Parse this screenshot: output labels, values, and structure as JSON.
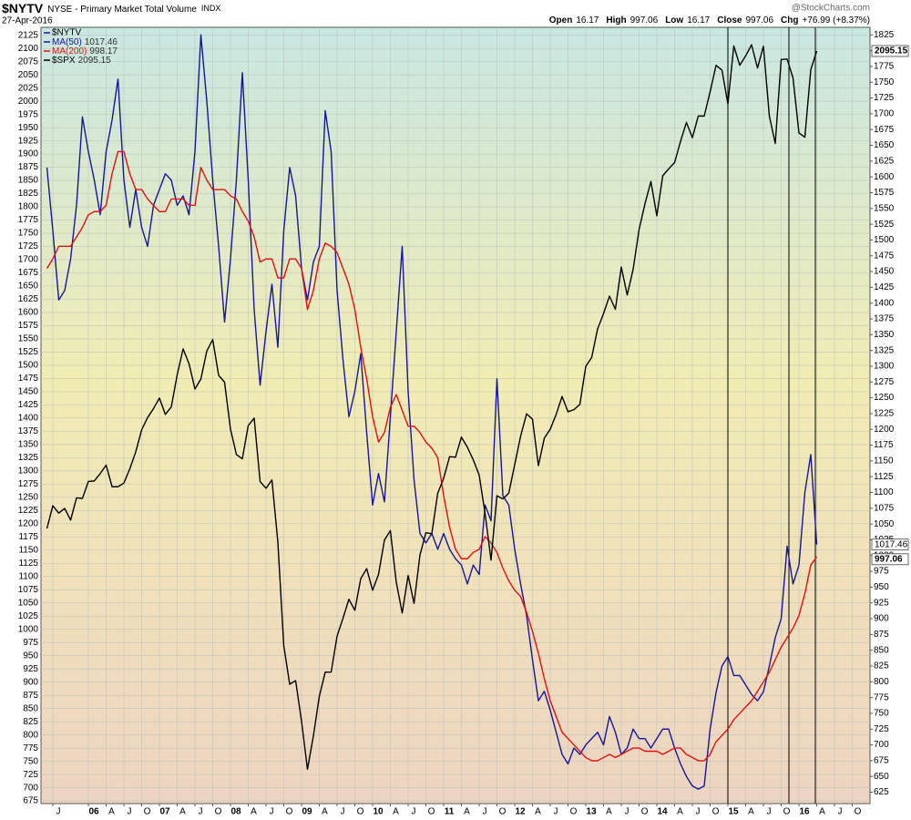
{
  "chart_data": {
    "type": "line",
    "title": "$NYTV",
    "subtitle": "NYSE - Primary Market Total Volume",
    "exchange": "INDX",
    "date": "27-Apr-2016",
    "source": "@StockCharts.com",
    "quote": [
      {
        "label": "Open",
        "value": 16.17
      },
      {
        "label": "High",
        "value": 997.06
      },
      {
        "label": "Low",
        "value": 16.17
      },
      {
        "label": "Close",
        "value": 997.06
      },
      {
        "label": "Chg",
        "value": "+76.99 (+8.37%)"
      }
    ],
    "x": [
      "2005-06",
      "2005-07",
      "2005-08",
      "2005-09",
      "2005-10",
      "2005-11",
      "2005-12",
      "2006-01",
      "2006-02",
      "2006-03",
      "2006-04",
      "2006-05",
      "2006-06",
      "2006-07",
      "2006-08",
      "2006-09",
      "2006-10",
      "2006-11",
      "2006-12",
      "2007-01",
      "2007-02",
      "2007-03",
      "2007-04",
      "2007-05",
      "2007-06",
      "2007-07",
      "2007-08",
      "2007-09",
      "2007-10",
      "2007-11",
      "2007-12",
      "2008-01",
      "2008-02",
      "2008-03",
      "2008-04",
      "2008-05",
      "2008-06",
      "2008-07",
      "2008-08",
      "2008-09",
      "2008-10",
      "2008-11",
      "2008-12",
      "2009-01",
      "2009-02",
      "2009-03",
      "2009-04",
      "2009-05",
      "2009-06",
      "2009-07",
      "2009-08",
      "2009-09",
      "2009-10",
      "2009-11",
      "2009-12",
      "2010-01",
      "2010-02",
      "2010-03",
      "2010-04",
      "2010-05",
      "2010-06",
      "2010-07",
      "2010-08",
      "2010-09",
      "2010-10",
      "2010-11",
      "2010-12",
      "2011-01",
      "2011-02",
      "2011-03",
      "2011-04",
      "2011-05",
      "2011-06",
      "2011-07",
      "2011-08",
      "2011-09",
      "2011-10",
      "2011-11",
      "2011-12",
      "2012-01",
      "2012-02",
      "2012-03",
      "2012-04",
      "2012-05",
      "2012-06",
      "2012-07",
      "2012-08",
      "2012-09",
      "2012-10",
      "2012-11",
      "2012-12",
      "2013-01",
      "2013-02",
      "2013-03",
      "2013-04",
      "2013-05",
      "2013-06",
      "2013-07",
      "2013-08",
      "2013-09",
      "2013-10",
      "2013-11",
      "2013-12",
      "2014-01",
      "2014-02",
      "2014-03",
      "2014-04",
      "2014-05",
      "2014-06",
      "2014-07",
      "2014-08",
      "2014-09",
      "2014-10",
      "2014-11",
      "2014-12",
      "2015-01",
      "2015-02",
      "2015-03",
      "2015-04",
      "2015-05",
      "2015-06",
      "2015-07",
      "2015-08",
      "2015-09",
      "2015-10",
      "2015-11",
      "2015-12",
      "2016-01",
      "2016-02",
      "2016-03",
      "2016-04"
    ],
    "series": [
      {
        "name": "MA(50)",
        "color": "#16169a",
        "axis": "y2",
        "values": [
          1615,
          1515,
          1405,
          1420,
          1470,
          1555,
          1695,
          1640,
          1595,
          1540,
          1640,
          1690,
          1755,
          1595,
          1520,
          1580,
          1520,
          1490,
          1555,
          1580,
          1605,
          1595,
          1555,
          1570,
          1540,
          1640,
          1825,
          1720,
          1595,
          1490,
          1370,
          1470,
          1595,
          1765,
          1595,
          1390,
          1270,
          1355,
          1430,
          1330,
          1515,
          1615,
          1570,
          1455,
          1405,
          1465,
          1490,
          1705,
          1640,
          1420,
          1310,
          1220,
          1260,
          1320,
          1195,
          1080,
          1130,
          1085,
          1220,
          1355,
          1490,
          1260,
          1120,
          1035,
          1020,
          1035,
          1010,
          1035,
          1010,
          995,
          985,
          955,
          985,
          970,
          1080,
          1055,
          1280,
          1095,
          1080,
          1010,
          955,
          905,
          835,
          770,
          785,
          755,
          720,
          685,
          670,
          695,
          685,
          700,
          710,
          720,
          700,
          745,
          720,
          685,
          695,
          725,
          710,
          710,
          695,
          710,
          725,
          725,
          695,
          670,
          650,
          635,
          630,
          635,
          725,
          783,
          825,
          840,
          810,
          810,
          795,
          780,
          770,
          784,
          825,
          870,
          900,
          1015,
          955,
          985,
          1100,
          1160,
          1017.46
        ]
      },
      {
        "name": "MA(200)",
        "color": "#e01010",
        "axis": "y2",
        "values": [
          1455,
          1470,
          1490,
          1490,
          1490,
          1505,
          1520,
          1540,
          1545,
          1545,
          1555,
          1605,
          1640,
          1640,
          1605,
          1580,
          1580,
          1565,
          1555,
          1545,
          1545,
          1565,
          1565,
          1565,
          1555,
          1555,
          1615,
          1595,
          1580,
          1580,
          1580,
          1570,
          1565,
          1545,
          1530,
          1505,
          1465,
          1470,
          1470,
          1440,
          1440,
          1470,
          1470,
          1455,
          1390,
          1420,
          1470,
          1495,
          1490,
          1480,
          1455,
          1430,
          1390,
          1330,
          1280,
          1220,
          1180,
          1195,
          1235,
          1255,
          1230,
          1205,
          1205,
          1195,
          1180,
          1170,
          1155,
          1095,
          1045,
          1010,
          995,
          995,
          1005,
          1010,
          1030,
          1020,
          1005,
          980,
          960,
          945,
          935,
          910,
          880,
          845,
          805,
          770,
          745,
          720,
          710,
          700,
          690,
          680,
          675,
          675,
          680,
          685,
          680,
          685,
          690,
          695,
          695,
          690,
          690,
          690,
          685,
          690,
          695,
          695,
          685,
          680,
          675,
          675,
          685,
          705,
          715,
          725,
          740,
          750,
          760,
          770,
          785,
          800,
          815,
          835,
          855,
          870,
          885,
          905,
          940,
          985,
          998.17
        ]
      },
      {
        "name": "$SPX",
        "color": "#000000",
        "values": [
          1191,
          1234,
          1220,
          1229,
          1207,
          1249,
          1248,
          1280,
          1281,
          1295,
          1311,
          1270,
          1270,
          1277,
          1304,
          1336,
          1378,
          1401,
          1418,
          1438,
          1407,
          1421,
          1482,
          1531,
          1503,
          1455,
          1474,
          1527,
          1549,
          1481,
          1468,
          1379,
          1331,
          1323,
          1386,
          1400,
          1280,
          1267,
          1283,
          1165,
          969,
          896,
          903,
          826,
          735,
          798,
          873,
          919,
          919,
          987,
          1021,
          1057,
          1036,
          1096,
          1115,
          1074,
          1104,
          1169,
          1187,
          1089,
          1031,
          1102,
          1049,
          1141,
          1183,
          1181,
          1258,
          1286,
          1327,
          1326,
          1364,
          1345,
          1321,
          1292,
          1219,
          1131,
          1253,
          1247,
          1258,
          1312,
          1366,
          1408,
          1398,
          1310,
          1362,
          1379,
          1407,
          1441,
          1412,
          1416,
          1426,
          1498,
          1515,
          1569,
          1598,
          1631,
          1606,
          1686,
          1633,
          1682,
          1757,
          1806,
          1848,
          1783,
          1859,
          1872,
          1884,
          1924,
          1960,
          1931,
          1972,
          1972,
          2018,
          2068,
          2059,
          1995,
          2105,
          2068,
          2086,
          2107,
          2063,
          2104,
          1972,
          1920,
          2079,
          2080,
          2044,
          1940,
          1932,
          2060,
          2095.15
        ]
      }
    ],
    "xlim": [
      "2005-05",
      "2017-01"
    ],
    "xticks": [
      {
        "value": "2005-07",
        "label": "J"
      },
      {
        "value": "2006-01",
        "label": "06"
      },
      {
        "value": "2006-04",
        "label": "A"
      },
      {
        "value": "2006-07",
        "label": "J"
      },
      {
        "value": "2006-10",
        "label": "O"
      },
      {
        "value": "2007-01",
        "label": "07"
      },
      {
        "value": "2007-04",
        "label": "A"
      },
      {
        "value": "2007-07",
        "label": "J"
      },
      {
        "value": "2007-10",
        "label": "O"
      },
      {
        "value": "2008-01",
        "label": "08"
      },
      {
        "value": "2008-04",
        "label": "A"
      },
      {
        "value": "2008-07",
        "label": "J"
      },
      {
        "value": "2008-10",
        "label": "O"
      },
      {
        "value": "2009-01",
        "label": "09"
      },
      {
        "value": "2009-04",
        "label": "A"
      },
      {
        "value": "2009-07",
        "label": "J"
      },
      {
        "value": "2009-10",
        "label": "O"
      },
      {
        "value": "2010-01",
        "label": "10"
      },
      {
        "value": "2010-04",
        "label": "A"
      },
      {
        "value": "2010-07",
        "label": "J"
      },
      {
        "value": "2010-10",
        "label": "O"
      },
      {
        "value": "2011-01",
        "label": "11"
      },
      {
        "value": "2011-04",
        "label": "A"
      },
      {
        "value": "2011-07",
        "label": "J"
      },
      {
        "value": "2011-10",
        "label": "O"
      },
      {
        "value": "2012-01",
        "label": "12"
      },
      {
        "value": "2012-04",
        "label": "A"
      },
      {
        "value": "2012-07",
        "label": "J"
      },
      {
        "value": "2012-10",
        "label": "O"
      },
      {
        "value": "2013-01",
        "label": "13"
      },
      {
        "value": "2013-04",
        "label": "A"
      },
      {
        "value": "2013-07",
        "label": "J"
      },
      {
        "value": "2013-10",
        "label": "O"
      },
      {
        "value": "2014-01",
        "label": "14"
      },
      {
        "value": "2014-04",
        "label": "A"
      },
      {
        "value": "2014-07",
        "label": "J"
      },
      {
        "value": "2014-10",
        "label": "O"
      },
      {
        "value": "2015-01",
        "label": "15"
      },
      {
        "value": "2015-04",
        "label": "A"
      },
      {
        "value": "2015-07",
        "label": "J"
      },
      {
        "value": "2015-10",
        "label": "O"
      },
      {
        "value": "2016-01",
        "label": "16"
      },
      {
        "value": "2016-04",
        "label": "A"
      },
      {
        "value": "2016-07",
        "label": "J"
      },
      {
        "value": "2016-10",
        "label": "O"
      }
    ],
    "ylim": [
      670,
      2140
    ],
    "yticks": [
      675,
      700,
      725,
      750,
      775,
      800,
      825,
      850,
      875,
      900,
      925,
      950,
      975,
      1000,
      1025,
      1050,
      1075,
      1100,
      1125,
      1150,
      1175,
      1200,
      1225,
      1250,
      1275,
      1300,
      1325,
      1350,
      1375,
      1400,
      1425,
      1450,
      1475,
      1500,
      1525,
      1550,
      1575,
      1600,
      1625,
      1650,
      1675,
      1700,
      1725,
      1750,
      1775,
      1800,
      1825,
      1850,
      1875,
      1900,
      1925,
      1950,
      1975,
      2000,
      2025,
      2050,
      2075,
      2100,
      2125
    ],
    "y2lim": [
      607,
      1837
    ],
    "y2ticks": [
      625,
      650,
      675,
      700,
      725,
      750,
      775,
      800,
      825,
      850,
      875,
      900,
      925,
      950,
      975,
      1000,
      1025,
      1050,
      1075,
      1100,
      1125,
      1150,
      1175,
      1200,
      1225,
      1250,
      1275,
      1300,
      1325,
      1350,
      1375,
      1400,
      1425,
      1450,
      1475,
      1500,
      1525,
      1550,
      1575,
      1600,
      1625,
      1650,
      1675,
      1700,
      1725,
      1750,
      1775,
      1800,
      1825
    ],
    "grid": true
  }
}
